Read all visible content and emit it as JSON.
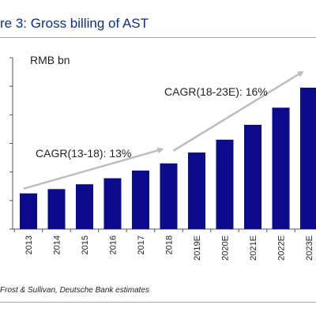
{
  "figure": {
    "title": "re 3: Gross billing of AST",
    "source": "Frost & Sullivan, Deutsche Bank estimates"
  },
  "colors": {
    "bar": "#0b0b8c",
    "arrow": "#bdbdbd",
    "title": "#0a2f8a",
    "axis": "#555555"
  },
  "chart_data": {
    "type": "bar",
    "unit_label": "RMB bn",
    "categories": [
      "2013",
      "2014",
      "2015",
      "2016",
      "2017",
      "2018",
      "2019E",
      "2020E",
      "2021E",
      "2022E",
      "2023E"
    ],
    "values": [
      12.5,
      14.0,
      15.7,
      17.8,
      20.5,
      23.0,
      26.8,
      31.3,
      36.5,
      42.5,
      49.5
    ],
    "ylim": [
      0,
      60
    ],
    "yticks": [
      0,
      10,
      20,
      30,
      40,
      50,
      60
    ],
    "grid": false,
    "annotations": [
      {
        "text": "CAGR(13-18): 13%"
      },
      {
        "text": "CAGR(18-23E): 16%"
      }
    ]
  }
}
